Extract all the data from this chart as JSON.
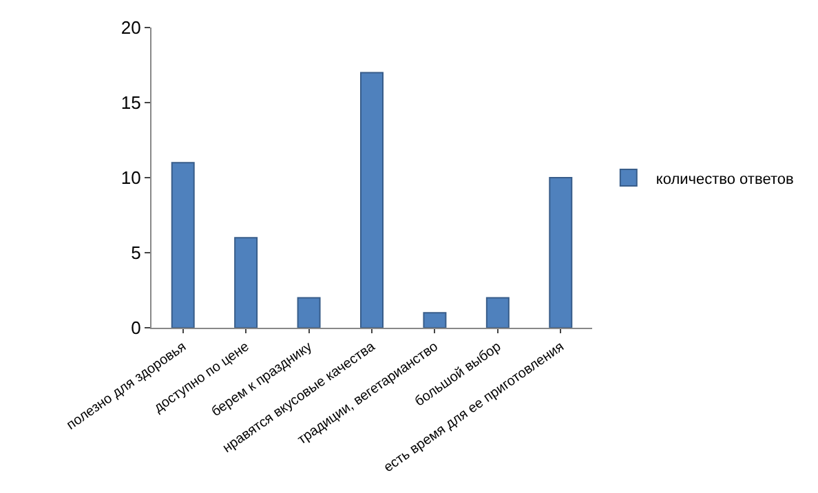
{
  "chart_data": {
    "type": "bar",
    "categories": [
      "полезно для здоровья",
      "доступно по цене",
      "берем к празднику",
      "нравятся вкусовые качества",
      "традиции, вегетарианство",
      "большой выбор",
      "есть время для ее приготовления"
    ],
    "series": [
      {
        "name": "количество ответов",
        "color": "#4f81bd",
        "values": [
          11,
          6,
          2,
          17,
          1,
          2,
          10
        ]
      }
    ],
    "ylim": [
      0,
      20
    ],
    "yticks": [
      0,
      5,
      10,
      15,
      20
    ],
    "grid": false,
    "legend": "right"
  }
}
